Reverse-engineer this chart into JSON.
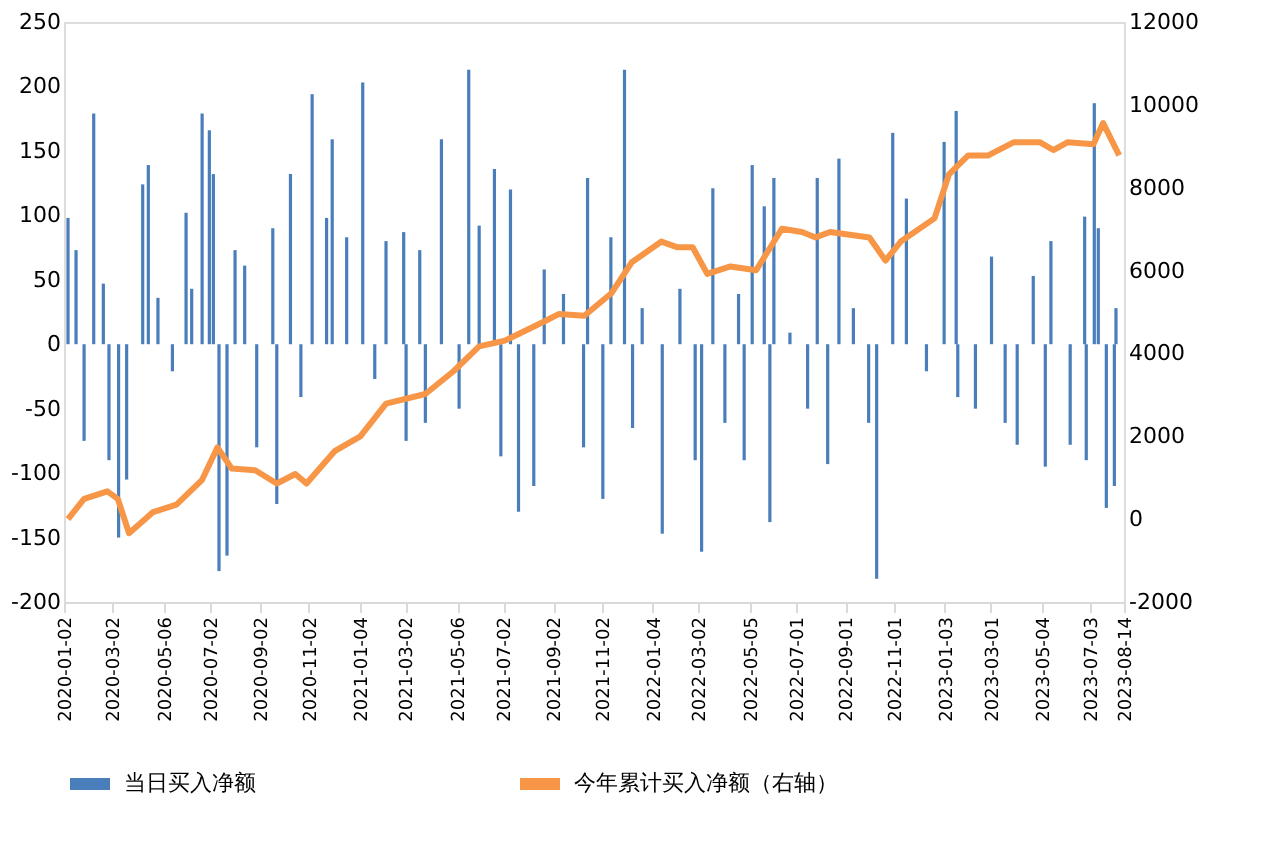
{
  "chart_data": {
    "type": "bar",
    "xlim": [
      "2020-01-02",
      "2023-08-14"
    ],
    "xticks": [
      "2020-01-02",
      "2020-03-02",
      "2020-05-06",
      "2020-07-02",
      "2020-09-02",
      "2020-11-02",
      "2021-01-04",
      "2021-03-02",
      "2021-05-06",
      "2021-07-02",
      "2021-09-02",
      "2021-11-02",
      "2022-01-04",
      "2022-03-02",
      "2022-05-05",
      "2022-07-01",
      "2022-09-01",
      "2022-11-01",
      "2023-01-03",
      "2023-03-01",
      "2023-05-04",
      "2023-07-03",
      "2023-08-14"
    ],
    "ylim": [
      -200,
      250
    ],
    "yticks": [
      -200,
      -150,
      -100,
      -50,
      0,
      50,
      100,
      150,
      200,
      250
    ],
    "y2lim": [
      -2000,
      12000
    ],
    "y2ticks": [
      -2000,
      0,
      2000,
      4000,
      6000,
      8000,
      10000,
      12000
    ],
    "grid": false,
    "legend": "bottom",
    "series": [
      {
        "name": "当日买入净额",
        "type": "bar",
        "color": "#4a7ebb",
        "x": [
          "2020-01-07",
          "2020-01-17",
          "2020-01-27",
          "2020-02-08",
          "2020-02-20",
          "2020-02-27",
          "2020-03-10",
          "2020-03-20",
          "2020-04-09",
          "2020-04-16",
          "2020-04-28",
          "2020-05-16",
          "2020-06-02",
          "2020-06-09",
          "2020-06-22",
          "2020-07-01",
          "2020-07-06",
          "2020-07-13",
          "2020-07-23",
          "2020-08-02",
          "2020-08-14",
          "2020-08-29",
          "2020-09-18",
          "2020-09-23",
          "2020-10-10",
          "2020-10-23",
          "2020-11-06",
          "2020-11-24",
          "2020-12-01",
          "2020-12-19",
          "2021-01-08",
          "2021-01-23",
          "2021-02-06",
          "2021-02-28",
          "2021-03-03",
          "2021-03-20",
          "2021-03-27",
          "2021-04-16",
          "2021-05-08",
          "2021-05-20",
          "2021-06-02",
          "2021-06-21",
          "2021-06-29",
          "2021-07-11",
          "2021-07-21",
          "2021-08-09",
          "2021-08-22",
          "2021-09-15",
          "2021-10-10",
          "2021-10-15",
          "2021-11-03",
          "2021-11-13",
          "2021-11-30",
          "2021-12-10",
          "2021-12-22",
          "2022-01-16",
          "2022-02-07",
          "2022-02-26",
          "2022-03-06",
          "2022-03-20",
          "2022-04-04",
          "2022-04-21",
          "2022-04-28",
          "2022-05-08",
          "2022-05-23",
          "2022-05-30",
          "2022-06-04",
          "2022-06-24",
          "2022-07-16",
          "2022-07-28",
          "2022-08-10",
          "2022-08-24",
          "2022-09-11",
          "2022-09-30",
          "2022-10-10",
          "2022-10-30",
          "2022-11-16",
          "2022-12-11",
          "2023-01-02",
          "2023-01-17",
          "2023-01-19",
          "2023-02-10",
          "2023-03-02",
          "2023-03-19",
          "2023-04-03",
          "2023-04-23",
          "2023-05-08",
          "2023-05-15",
          "2023-06-08",
          "2023-06-26",
          "2023-06-28",
          "2023-07-08",
          "2023-07-13",
          "2023-07-23",
          "2023-08-02",
          "2023-08-04"
        ],
        "values": [
          98,
          73,
          -75,
          179,
          47,
          -90,
          -150,
          -105,
          124,
          139,
          36,
          -21,
          102,
          43,
          179,
          166,
          132,
          -176,
          -164,
          73,
          61,
          -80,
          90,
          -124,
          132,
          -41,
          194,
          98,
          159,
          83,
          203,
          -27,
          80,
          87,
          -75,
          73,
          -61,
          159,
          -50,
          213,
          92,
          136,
          -87,
          120,
          -130,
          -110,
          58,
          39,
          -80,
          129,
          -120,
          83,
          213,
          -65,
          28,
          -147,
          43,
          -90,
          -161,
          121,
          -61,
          39,
          -90,
          139,
          107,
          -138,
          129,
          9,
          -50,
          129,
          -93,
          144,
          28,
          -61,
          -182,
          164,
          113,
          -21,
          157,
          181,
          -41,
          -50,
          68,
          -61,
          -78,
          53,
          -95,
          80,
          -78,
          99,
          -90,
          187,
          90,
          -127,
          -110,
          28
        ]
      },
      {
        "name": "今年累计买入净额（右轴）",
        "type": "line",
        "axis": "y2",
        "color": "#f79646",
        "x": [
          "2020-01-07",
          "2020-01-27",
          "2020-02-25",
          "2020-03-09",
          "2020-03-23",
          "2020-04-22",
          "2020-05-21",
          "2020-06-22",
          "2020-07-11",
          "2020-07-29",
          "2020-08-27",
          "2020-09-23",
          "2020-10-16",
          "2020-10-30",
          "2020-12-04",
          "2021-01-05",
          "2021-02-06",
          "2021-03-27",
          "2021-05-01",
          "2021-06-02",
          "2021-07-04",
          "2021-08-22",
          "2021-09-09",
          "2021-10-11",
          "2021-11-14",
          "2021-12-09",
          "2022-01-15",
          "2022-02-04",
          "2022-02-23",
          "2022-03-13",
          "2022-04-11",
          "2022-05-13",
          "2022-06-14",
          "2022-07-09",
          "2022-07-26",
          "2022-08-13",
          "2022-10-01",
          "2022-10-21",
          "2022-11-09",
          "2022-12-21",
          "2023-01-08",
          "2023-02-01",
          "2023-02-26",
          "2023-03-30",
          "2023-05-01",
          "2023-05-18",
          "2023-06-05",
          "2023-07-07",
          "2023-07-19",
          "2023-08-08"
        ],
        "values": [
          0,
          490,
          670,
          490,
          -340,
          170,
          350,
          950,
          1730,
          1220,
          1180,
          860,
          1090,
          860,
          1640,
          2000,
          2790,
          3020,
          3570,
          4170,
          4310,
          4770,
          4950,
          4910,
          5460,
          6200,
          6700,
          6560,
          6560,
          5920,
          6100,
          6010,
          7010,
          6930,
          6800,
          6930,
          6800,
          6240,
          6700,
          7260,
          8320,
          8780,
          8780,
          9100,
          9100,
          8910,
          9100,
          9050,
          9560,
          8780
        ]
      }
    ]
  }
}
